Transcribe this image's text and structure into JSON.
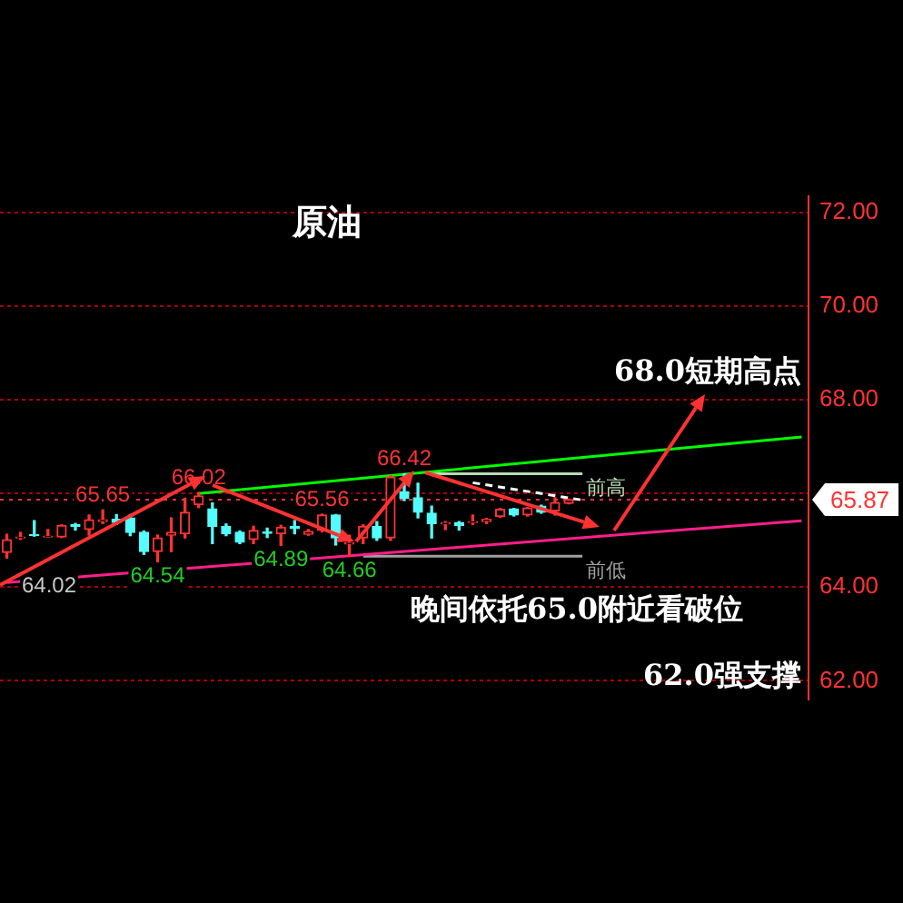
{
  "chart_data": {
    "type": "candlestick",
    "title": "原油",
    "categories": [
      null,
      null,
      null,
      null,
      null,
      null,
      null,
      null,
      null,
      null,
      null,
      null,
      null,
      null,
      null,
      null,
      null,
      null,
      null,
      null,
      null,
      null,
      null,
      null,
      null,
      null,
      null,
      null,
      null,
      null,
      null,
      null,
      null,
      null,
      null,
      null,
      null,
      null,
      null,
      null,
      null,
      null,
      null,
      null,
      null,
      null,
      null,
      null,
      null,
      null,
      null,
      null,
      null,
      null,
      null,
      null,
      null,
      null,
      null
    ],
    "ohlc": [
      [
        64.74,
        65.13,
        64.62,
        65.01
      ],
      [
        65.05,
        65.17,
        65.02,
        65.07
      ],
      [
        65.12,
        65.42,
        65.09,
        65.1
      ],
      [
        65.07,
        65.23,
        65.07,
        65.09
      ],
      [
        65.07,
        65.33,
        65.06,
        65.32
      ],
      [
        65.33,
        65.36,
        65.22,
        65.3
      ],
      [
        65.23,
        65.54,
        65.11,
        65.44
      ],
      [
        65.4,
        65.65,
        65.36,
        65.44
      ],
      [
        65.45,
        65.55,
        65.34,
        65.38
      ],
      [
        65.48,
        65.55,
        65.1,
        65.17
      ],
      [
        65.17,
        65.2,
        64.7,
        64.76
      ],
      [
        64.76,
        65.11,
        64.54,
        65.05
      ],
      [
        65.11,
        65.48,
        64.76,
        65.17
      ],
      [
        65.14,
        65.9,
        65.05,
        65.6
      ],
      [
        65.76,
        66.02,
        65.7,
        65.95
      ],
      [
        65.67,
        65.8,
        64.93,
        65.3
      ],
      [
        65.3,
        65.35,
        65.1,
        65.14
      ],
      [
        65.17,
        65.2,
        64.93,
        64.96
      ],
      [
        65.02,
        65.3,
        64.93,
        65.21
      ],
      [
        65.18,
        65.26,
        65.06,
        65.15
      ],
      [
        65.14,
        65.32,
        64.89,
        65.28
      ],
      [
        65.3,
        65.42,
        65.14,
        65.25
      ],
      [
        65.13,
        65.23,
        65.11,
        65.19
      ],
      [
        65.21,
        65.56,
        65.18,
        65.54
      ],
      [
        65.54,
        65.55,
        64.9,
        65.05
      ],
      [
        64.92,
        65.11,
        64.66,
        64.95
      ],
      [
        65.05,
        65.33,
        64.93,
        65.3
      ],
      [
        65.3,
        65.4,
        65.0,
        65.05
      ],
      [
        65.05,
        66.38,
        65.0,
        66.35
      ],
      [
        66.04,
        66.42,
        65.85,
        65.9
      ],
      [
        65.91,
        66.22,
        65.48,
        65.6
      ],
      [
        65.58,
        65.73,
        65.05,
        65.36
      ],
      [
        65.35,
        65.4,
        65.23,
        65.37
      ],
      [
        65.38,
        65.4,
        65.22,
        65.32
      ],
      [
        65.38,
        65.54,
        65.34,
        65.4
      ],
      [
        65.4,
        65.47,
        65.36,
        65.45
      ],
      [
        65.51,
        65.68,
        65.49,
        65.66
      ],
      [
        65.67,
        65.68,
        65.52,
        65.54
      ],
      [
        65.54,
        65.7,
        65.52,
        65.69
      ],
      [
        65.73,
        65.75,
        65.58,
        65.6
      ],
      [
        65.63,
        65.91,
        65.54,
        65.81
      ],
      [
        65.79,
        65.88,
        65.78,
        65.87
      ],
      null,
      null,
      null,
      null,
      null,
      null,
      null,
      null,
      null,
      null,
      null,
      null,
      null,
      null,
      null,
      null,
      null
    ],
    "series": [
      {
        "type": "line",
        "color": "#00ff00",
        "values": [
          null,
          null,
          null,
          null,
          null,
          null,
          null,
          null,
          null,
          null,
          null,
          null,
          null,
          null,
          66.0,
          null,
          null,
          null,
          null,
          null,
          null,
          null,
          null,
          null,
          null,
          null,
          null,
          null,
          null,
          null,
          null,
          null,
          null,
          null,
          null,
          null,
          null,
          null,
          null,
          null,
          null,
          null,
          null,
          null,
          null,
          null,
          null,
          null,
          null,
          null,
          null,
          null,
          null,
          null,
          null,
          null,
          null,
          null,
          67.21
        ]
      },
      {
        "type": "line",
        "color": "#ff1e8c",
        "values": [
          64.1,
          null,
          null,
          null,
          null,
          null,
          null,
          null,
          null,
          null,
          null,
          null,
          null,
          null,
          null,
          null,
          null,
          null,
          null,
          null,
          null,
          null,
          null,
          null,
          null,
          null,
          null,
          null,
          null,
          null,
          null,
          null,
          null,
          null,
          null,
          null,
          null,
          null,
          null,
          null,
          null,
          null,
          null,
          null,
          null,
          null,
          null,
          null,
          null,
          null,
          null,
          null,
          null,
          null,
          null,
          null,
          null,
          null,
          65.42
        ]
      },
      {
        "type": "line",
        "name": "前高",
        "color": "#b4dcb4",
        "values": [
          null,
          null,
          null,
          null,
          null,
          null,
          null,
          null,
          null,
          null,
          null,
          null,
          null,
          null,
          null,
          null,
          null,
          null,
          null,
          null,
          null,
          null,
          null,
          null,
          null,
          null,
          null,
          null,
          null,
          null,
          null,
          66.42,
          null,
          null,
          null,
          null,
          null,
          null,
          null,
          null,
          null,
          null,
          66.42,
          null,
          null,
          null,
          null,
          null,
          null,
          null,
          null,
          null,
          null,
          null,
          null,
          null,
          null,
          null,
          null
        ]
      },
      {
        "type": "line",
        "name": "前低",
        "color": "#a0a0a0",
        "values": [
          null,
          null,
          null,
          null,
          null,
          null,
          null,
          null,
          null,
          null,
          null,
          null,
          null,
          null,
          null,
          null,
          null,
          null,
          null,
          null,
          null,
          null,
          null,
          null,
          null,
          null,
          64.66,
          null,
          null,
          null,
          null,
          null,
          null,
          null,
          null,
          null,
          null,
          null,
          null,
          null,
          null,
          null,
          64.66,
          null,
          null,
          null,
          null,
          null,
          null,
          null,
          null,
          null,
          null,
          null,
          null,
          null,
          null,
          null,
          null
        ]
      },
      {
        "type": "line",
        "color": "#ffffff",
        "line_style": "dashed",
        "values": [
          null,
          null,
          null,
          null,
          null,
          null,
          null,
          null,
          null,
          null,
          null,
          null,
          null,
          null,
          null,
          null,
          null,
          null,
          null,
          null,
          null,
          null,
          null,
          null,
          null,
          null,
          null,
          null,
          null,
          null,
          null,
          null,
          null,
          null,
          66.23,
          null,
          null,
          null,
          null,
          null,
          null,
          null,
          65.86,
          null,
          null,
          null,
          null,
          null,
          null,
          null,
          null,
          null,
          null,
          null,
          null,
          null,
          null,
          null,
          null
        ]
      }
    ],
    "ylim": [
      61.6,
      72.35
    ],
    "yticks": [
      {
        "value": 62,
        "label": "62.00"
      },
      {
        "value": 64,
        "label": "64.00"
      },
      {
        "value": 66,
        "label": null
      },
      {
        "value": 68,
        "label": "68.00"
      },
      {
        "value": 70,
        "label": "70.00"
      },
      {
        "value": 72,
        "label": "72.00"
      }
    ],
    "tick_labels": "y",
    "grid": "y",
    "ref_lines": [
      {
        "axis": "y",
        "value": 65.87,
        "label": "65.87",
        "color": "#ff3232",
        "line_style": "dotted"
      }
    ],
    "annotations": [
      {
        "text": "65.65",
        "y": 65.65
      },
      {
        "text": "66.02",
        "y": 66.02
      },
      {
        "text": "64.54",
        "y": 64.54
      },
      {
        "text": "64.89",
        "y": 64.89
      },
      {
        "text": "65.56",
        "y": 65.56
      },
      {
        "text": "64.66",
        "y": 64.66
      },
      {
        "text": "66.42",
        "y": 66.42
      },
      {
        "text": "64.02",
        "y": 64.02
      },
      "68.0短期高点",
      "晚间依托65.0附近看破位",
      "62.0强支撑"
    ]
  }
}
